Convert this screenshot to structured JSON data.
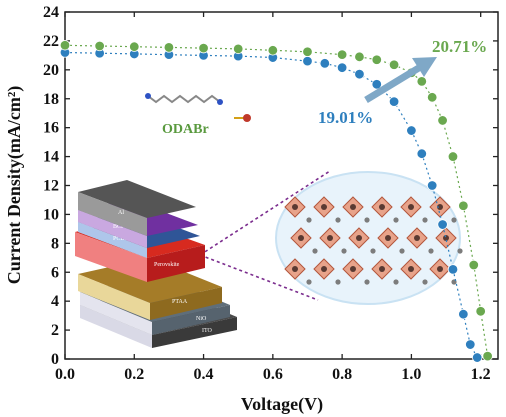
{
  "chart_data": {
    "type": "scatter",
    "xlabel": "Voltage(V)",
    "ylabel": "Current Density(mA/cm²)",
    "xlim": [
      0,
      1.25
    ],
    "ylim": [
      0,
      24
    ],
    "xticks": [
      "0.0",
      "0.2",
      "0.4",
      "0.6",
      "0.8",
      "1.0",
      "1.2"
    ],
    "yticks": [
      "0",
      "2",
      "4",
      "6",
      "8",
      "10",
      "12",
      "14",
      "16",
      "18",
      "20",
      "22",
      "24"
    ],
    "series": [
      {
        "color": "#2e7fbe",
        "x": [
          0.0,
          0.1,
          0.2,
          0.3,
          0.4,
          0.5,
          0.6,
          0.7,
          0.75,
          0.8,
          0.85,
          0.9,
          0.95,
          1.0,
          1.03,
          1.06,
          1.09,
          1.12,
          1.15,
          1.17,
          1.19
        ],
        "y": [
          21.2,
          21.15,
          21.1,
          21.05,
          21.0,
          20.95,
          20.85,
          20.6,
          20.45,
          20.15,
          19.7,
          19.0,
          17.8,
          15.8,
          14.2,
          12.0,
          9.3,
          6.2,
          3.1,
          1.0,
          0.1
        ]
      },
      {
        "color": "#6aa84f",
        "x": [
          0.0,
          0.1,
          0.2,
          0.3,
          0.4,
          0.5,
          0.6,
          0.7,
          0.8,
          0.85,
          0.9,
          0.95,
          1.0,
          1.03,
          1.06,
          1.09,
          1.12,
          1.15,
          1.18,
          1.2,
          1.22
        ],
        "y": [
          21.7,
          21.65,
          21.6,
          21.55,
          21.5,
          21.45,
          21.35,
          21.25,
          21.05,
          20.9,
          20.7,
          20.35,
          19.8,
          19.2,
          18.1,
          16.5,
          14.0,
          10.6,
          6.5,
          3.3,
          0.2
        ]
      }
    ],
    "annotations": [
      {
        "text": "20.71%",
        "color": "#6aa84f"
      },
      {
        "text": "19.01%",
        "color": "#2e7fbe"
      }
    ],
    "inset_labels": {
      "molecule": "ODABr",
      "layers": [
        "Al",
        "BCP",
        "PCBM",
        "Perovskite",
        "PTAA",
        "NiO",
        "ITO"
      ]
    }
  }
}
